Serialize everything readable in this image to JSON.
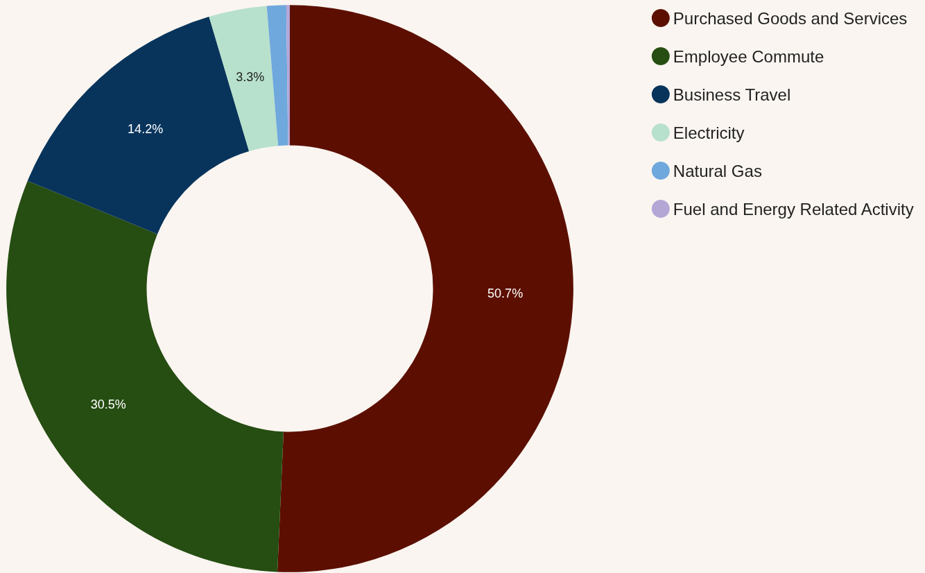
{
  "chart_data": {
    "type": "donut",
    "categories": [
      "Purchased Goods and Services",
      "Employee Commute",
      "Business Travel",
      "Electricity",
      "Natural Gas",
      "Fuel and Energy Related Activity"
    ],
    "values": [
      50.7,
      30.5,
      14.2,
      3.3,
      1.1,
      0.2
    ],
    "colors": [
      "#5c0f00",
      "#264d12",
      "#08345c",
      "#b7e1cc",
      "#6fa8dc",
      "#b4a7d6"
    ],
    "value_labels": [
      "50.7%",
      "30.5%",
      "14.2%",
      "3.3%",
      null,
      null
    ],
    "legend": "top right"
  }
}
